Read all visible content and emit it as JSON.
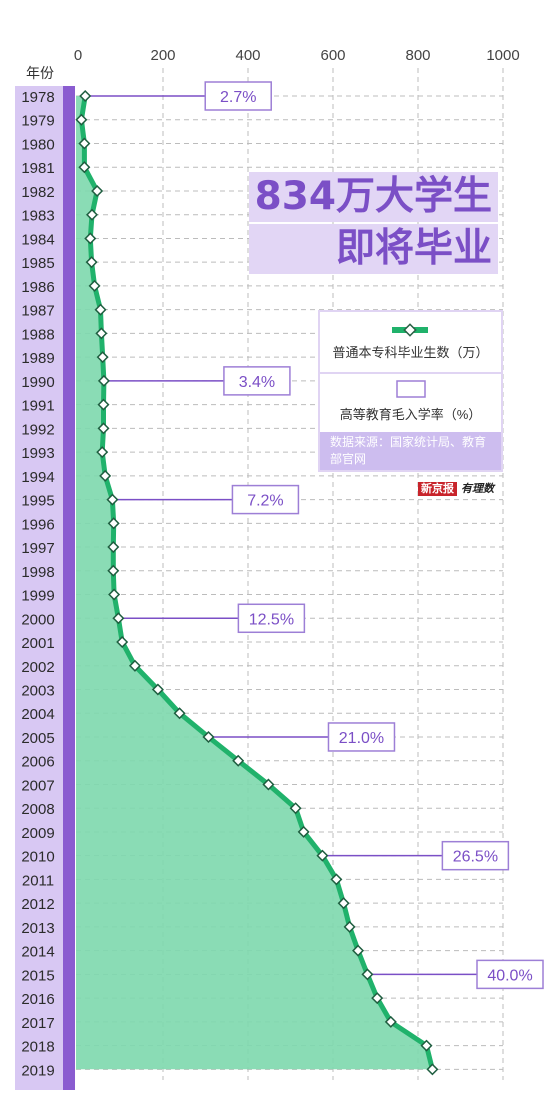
{
  "chart_data": {
    "type": "area",
    "orientation": "horizontal",
    "title_lines": [
      "834万大学生",
      "即将毕业"
    ],
    "ylabel": "年份",
    "xlim": [
      0,
      1000
    ],
    "xticks": [
      0,
      200,
      400,
      600,
      800,
      1000
    ],
    "grid": true,
    "categories": [
      "1978",
      "1979",
      "1980",
      "1981",
      "1982",
      "1983",
      "1984",
      "1985",
      "1986",
      "1987",
      "1988",
      "1989",
      "1990",
      "1991",
      "1992",
      "1993",
      "1994",
      "1995",
      "1996",
      "1997",
      "1998",
      "1999",
      "2000",
      "2001",
      "2002",
      "2003",
      "2004",
      "2005",
      "2006",
      "2007",
      "2008",
      "2009",
      "2010",
      "2011",
      "2012",
      "2013",
      "2014",
      "2015",
      "2016",
      "2017",
      "2018",
      "2019"
    ],
    "series": [
      {
        "name": "普通本专科毕业生数（万）",
        "color": "#20b26b",
        "fill": "#7dd8ad",
        "values": [
          17,
          8,
          15,
          15,
          45,
          33,
          29,
          32,
          39,
          53,
          55,
          58,
          61,
          60,
          60,
          57,
          64,
          81,
          84,
          83,
          83,
          85,
          95,
          104,
          134,
          188,
          239,
          307,
          377,
          448,
          512,
          531,
          575,
          608,
          625,
          639,
          659,
          681,
          704,
          736,
          820,
          834
        ]
      }
    ],
    "annotations": [
      {
        "category": "1978",
        "label": "2.7%"
      },
      {
        "category": "1990",
        "label": "3.4%"
      },
      {
        "category": "1995",
        "label": "7.2%"
      },
      {
        "category": "2000",
        "label": "12.5%"
      },
      {
        "category": "2005",
        "label": "21.0%"
      },
      {
        "category": "2010",
        "label": "26.5%"
      },
      {
        "category": "2015",
        "label": "40.0%"
      }
    ],
    "annotation_series_name": "高等教育毛入学率（%）",
    "colors": {
      "accent": "#7b4fc6",
      "bar": "#8a5cd0",
      "year_band": "#d8c8f3",
      "label_border": "#9d7fd6",
      "grid": "#bcbcbc"
    },
    "legend": {
      "placement": "right",
      "source": "数据来源：国家统计局、教育部官网"
    },
    "branding": {
      "logo_a": "新京报",
      "logo_b": "有理数"
    }
  }
}
